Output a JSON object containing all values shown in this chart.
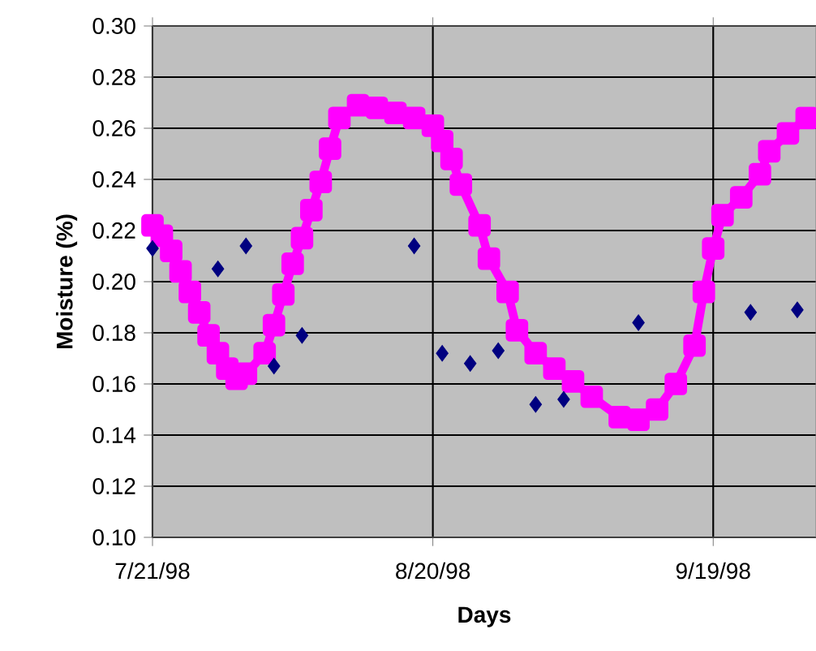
{
  "chart_data": {
    "type": "line",
    "xlabel": "Days",
    "ylabel": "Moisture (%)",
    "xlim": [
      "1998-07-21",
      "1998-09-30"
    ],
    "xticks": [
      {
        "value": "1998-07-21",
        "label": "7/21/98"
      },
      {
        "value": "1998-08-20",
        "label": "8/20/98"
      },
      {
        "value": "1998-09-19",
        "label": "9/19/98"
      }
    ],
    "ylim": [
      0.1,
      0.3
    ],
    "yticks": [
      {
        "value": 0.1,
        "label": "0.10"
      },
      {
        "value": 0.12,
        "label": "0.12"
      },
      {
        "value": 0.14,
        "label": "0.14"
      },
      {
        "value": 0.16,
        "label": "0.16"
      },
      {
        "value": 0.18,
        "label": "0.18"
      },
      {
        "value": 0.2,
        "label": "0.20"
      },
      {
        "value": 0.22,
        "label": "0.22"
      },
      {
        "value": 0.24,
        "label": "0.24"
      },
      {
        "value": 0.26,
        "label": "0.26"
      },
      {
        "value": 0.28,
        "label": "0.28"
      },
      {
        "value": 0.3,
        "label": "0.30"
      }
    ],
    "grid": true,
    "series": [
      {
        "color": "#ff00ff",
        "marker": "square",
        "line_style": "solid",
        "x": [
          "1998-07-21",
          "1998-07-22",
          "1998-07-23",
          "1998-07-24",
          "1998-07-25",
          "1998-07-26",
          "1998-07-27",
          "1998-07-28",
          "1998-07-29",
          "1998-07-30",
          "1998-07-31",
          "1998-08-02",
          "1998-08-03",
          "1998-08-04",
          "1998-08-05",
          "1998-08-06",
          "1998-08-07",
          "1998-08-08",
          "1998-08-09",
          "1998-08-10",
          "1998-08-12",
          "1998-08-14",
          "1998-08-16",
          "1998-08-18",
          "1998-08-20",
          "1998-08-21",
          "1998-08-22",
          "1998-08-23",
          "1998-08-25",
          "1998-08-26",
          "1998-08-28",
          "1998-08-29",
          "1998-08-31",
          "1998-09-02",
          "1998-09-04",
          "1998-09-06",
          "1998-09-09",
          "1998-09-11",
          "1998-09-13",
          "1998-09-15",
          "1998-09-17",
          "1998-09-18",
          "1998-09-19",
          "1998-09-20",
          "1998-09-22",
          "1998-09-24",
          "1998-09-25",
          "1998-09-27",
          "1998-09-29"
        ],
        "values": [
          0.222,
          0.218,
          0.212,
          0.204,
          0.196,
          0.188,
          0.179,
          0.172,
          0.166,
          0.162,
          0.164,
          0.172,
          0.183,
          0.195,
          0.207,
          0.217,
          0.228,
          0.239,
          0.252,
          0.264,
          0.269,
          0.268,
          0.266,
          0.264,
          0.261,
          0.255,
          0.248,
          0.238,
          0.222,
          0.209,
          0.196,
          0.181,
          0.172,
          0.166,
          0.161,
          0.155,
          0.147,
          0.146,
          0.15,
          0.16,
          0.175,
          0.196,
          0.213,
          0.226,
          0.233,
          0.242,
          0.251,
          0.258,
          0.264
        ]
      },
      {
        "type": "scatter",
        "color": "#000080",
        "marker": "diamond",
        "x": [
          "1998-07-21",
          "1998-07-28",
          "1998-07-31",
          "1998-08-03",
          "1998-08-06",
          "1998-08-18",
          "1998-08-21",
          "1998-08-24",
          "1998-08-27",
          "1998-08-31",
          "1998-09-03",
          "1998-09-11",
          "1998-09-23",
          "1998-09-28"
        ],
        "values": [
          0.213,
          0.205,
          0.214,
          0.167,
          0.179,
          0.214,
          0.172,
          0.168,
          0.173,
          0.152,
          0.154,
          0.184,
          0.188,
          0.189
        ]
      }
    ]
  }
}
